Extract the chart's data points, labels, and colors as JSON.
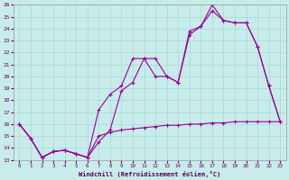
{
  "xlabel": "Windchill (Refroidissement éolien,°C)",
  "background_color": "#c8ecea",
  "line_color": "#990099",
  "grid_color": "#a8d8d8",
  "xlim": [
    0,
    23
  ],
  "ylim": [
    13,
    26
  ],
  "yticks": [
    13,
    14,
    15,
    16,
    17,
    18,
    19,
    20,
    21,
    22,
    23,
    24,
    25,
    26
  ],
  "xticks": [
    0,
    1,
    2,
    3,
    4,
    5,
    6,
    7,
    8,
    9,
    10,
    11,
    12,
    13,
    14,
    15,
    16,
    17,
    18,
    19,
    20,
    21,
    22,
    23
  ],
  "line1_x": [
    0,
    1,
    2,
    3,
    4,
    5,
    6,
    7,
    8,
    9,
    10,
    11,
    12,
    13,
    14,
    15,
    16,
    17,
    18,
    19,
    20,
    21,
    22,
    23
  ],
  "line1_y": [
    16.0,
    14.8,
    13.2,
    13.7,
    13.8,
    13.5,
    13.2,
    15.0,
    15.3,
    15.5,
    15.6,
    15.7,
    15.8,
    15.9,
    15.9,
    16.0,
    16.0,
    16.1,
    16.1,
    16.2,
    16.2,
    16.2,
    16.2,
    16.2
  ],
  "line2_x": [
    0,
    1,
    2,
    3,
    4,
    5,
    6,
    7,
    8,
    9,
    10,
    11,
    12,
    13,
    14,
    15,
    16,
    17,
    18,
    19,
    20,
    21,
    22,
    23
  ],
  "line2_y": [
    16.0,
    14.8,
    13.2,
    13.7,
    13.8,
    13.5,
    13.2,
    17.2,
    18.5,
    19.2,
    21.5,
    21.5,
    20.0,
    20.0,
    19.5,
    23.5,
    24.2,
    25.5,
    24.7,
    24.5,
    24.5,
    22.5,
    19.2,
    16.2
  ],
  "line3_x": [
    0,
    1,
    2,
    3,
    4,
    5,
    6,
    7,
    8,
    9,
    10,
    11,
    12,
    13,
    14,
    15,
    16,
    17,
    18,
    19,
    20,
    21,
    22,
    23
  ],
  "line3_y": [
    16.0,
    14.8,
    13.2,
    13.7,
    13.8,
    13.5,
    13.2,
    14.5,
    15.5,
    18.8,
    19.5,
    21.5,
    21.5,
    20.0,
    19.5,
    23.8,
    24.2,
    26.0,
    24.7,
    24.5,
    24.5,
    22.5,
    19.2,
    16.2
  ]
}
